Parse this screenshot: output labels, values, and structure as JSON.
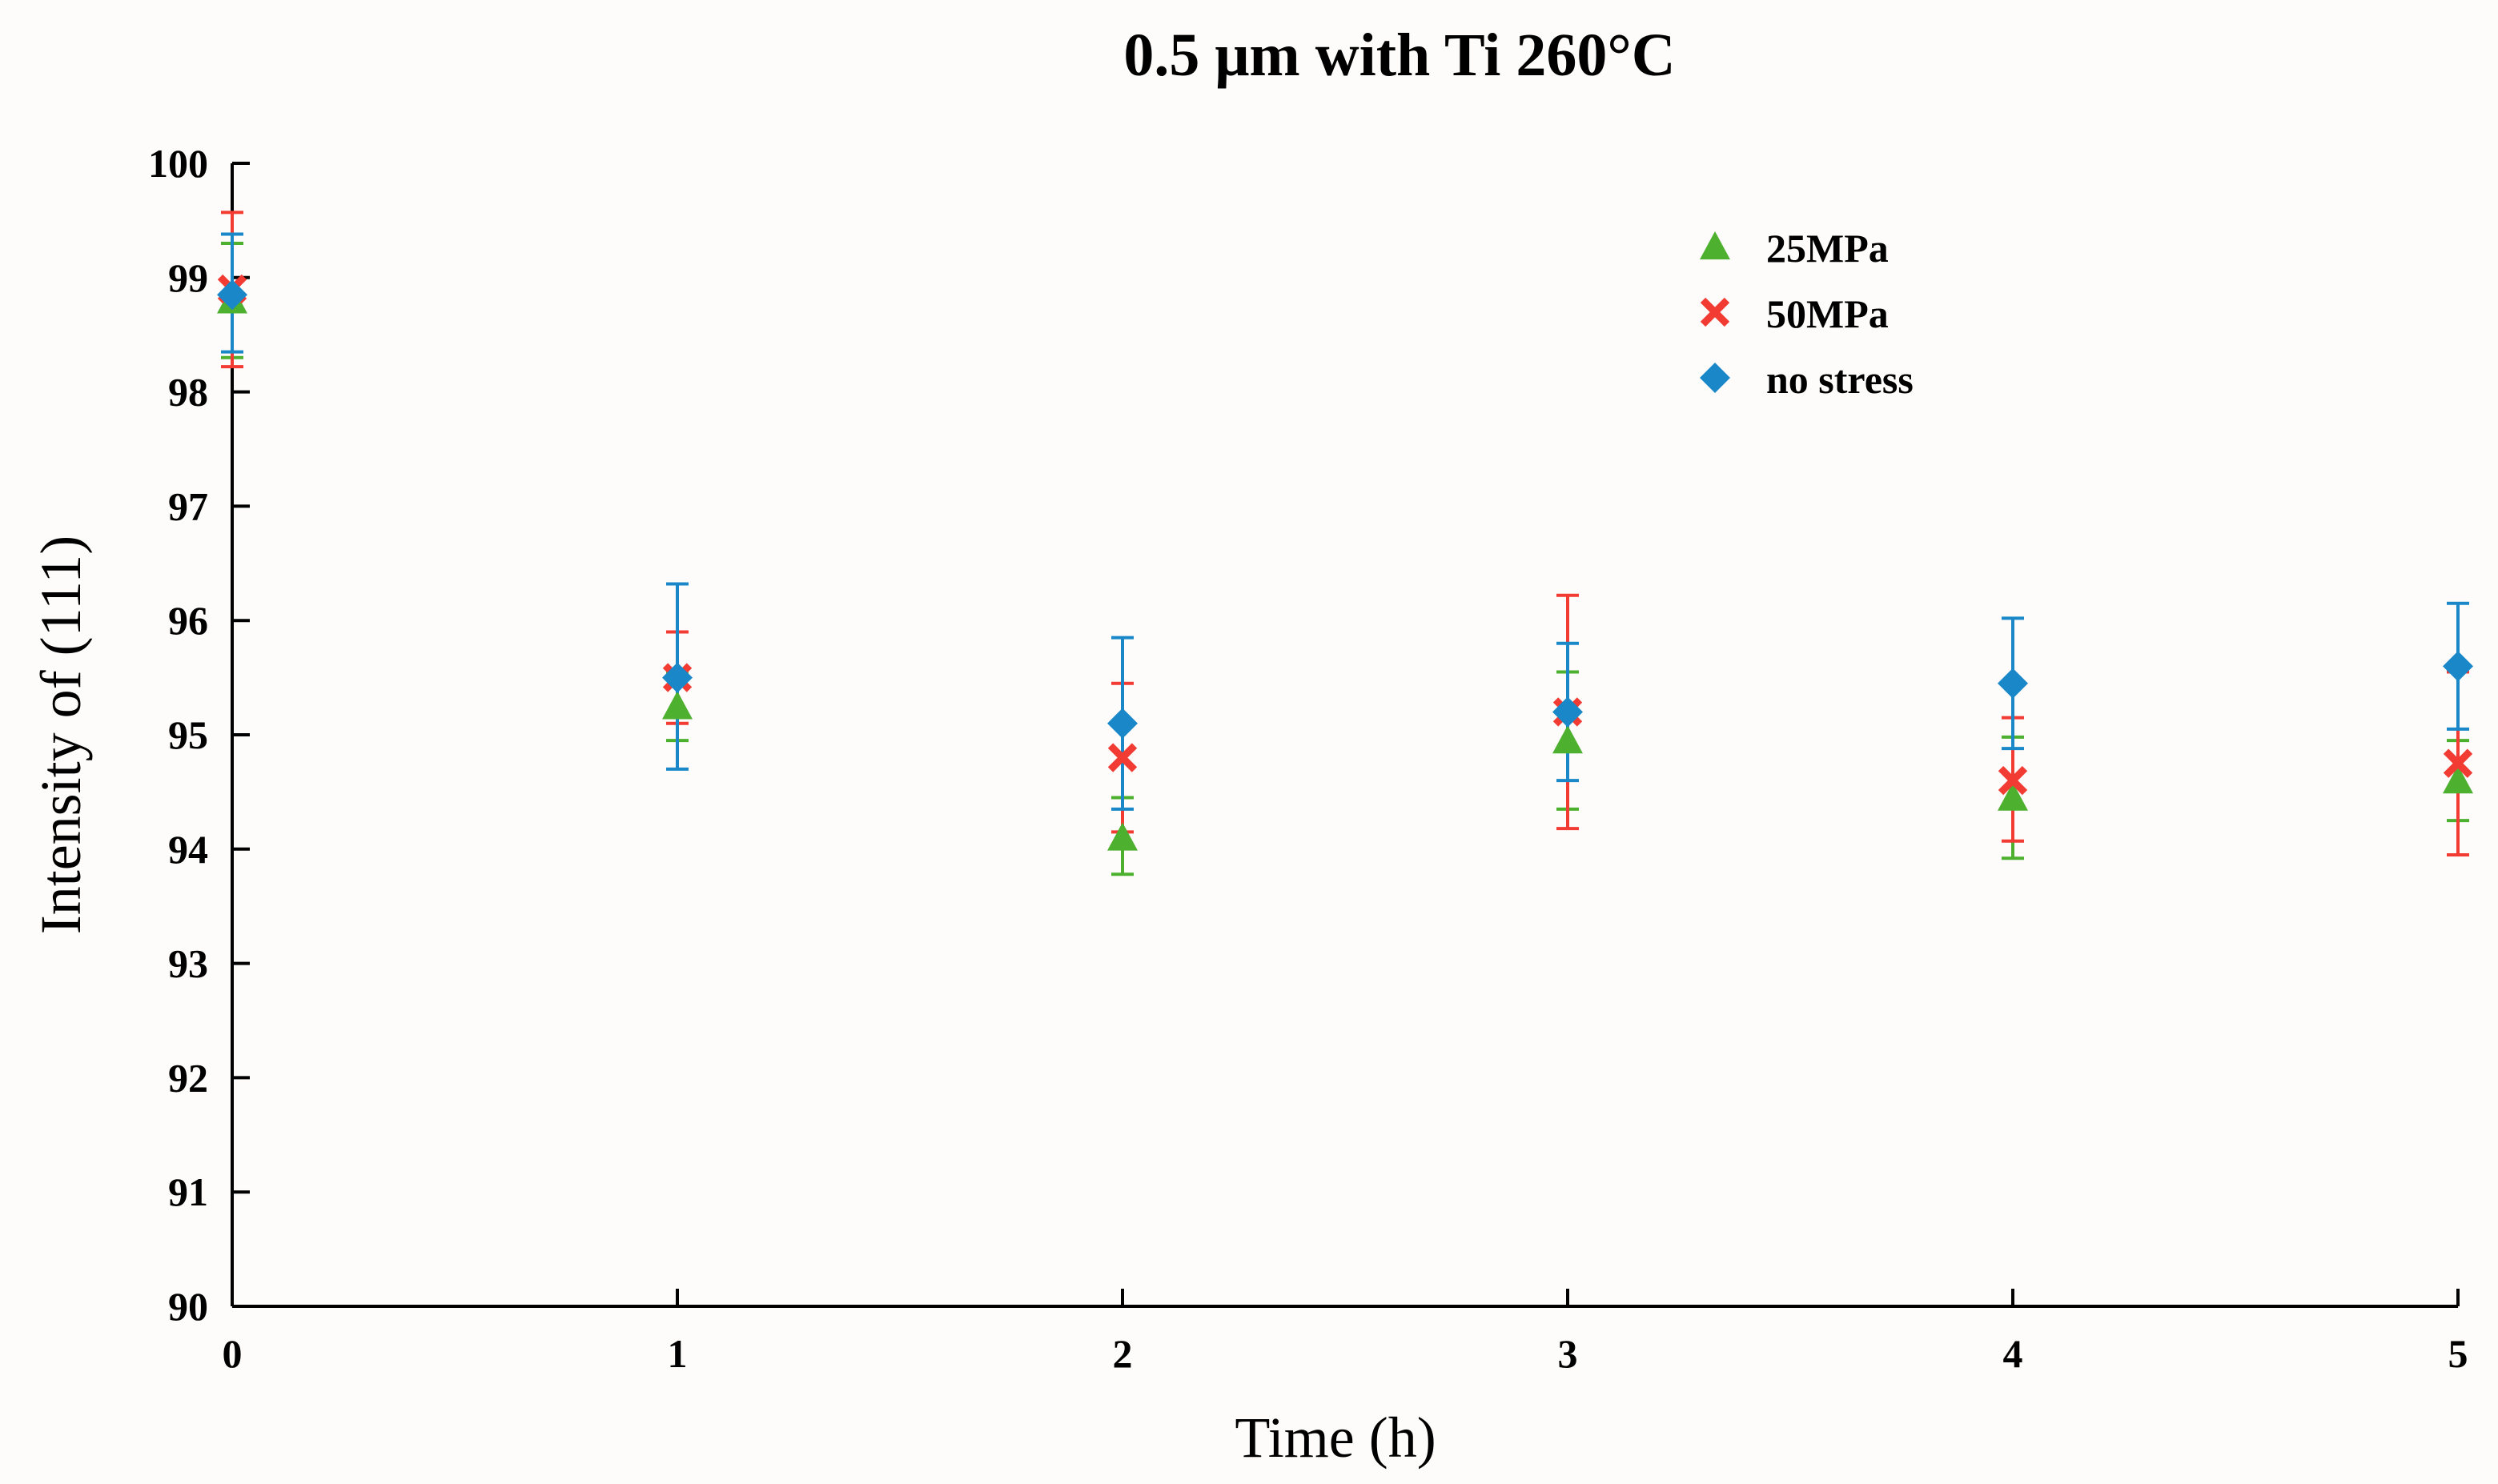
{
  "chart_data": {
    "type": "scatter",
    "title": "0.5 μm with Ti 260°C",
    "xlabel": "Time (h)",
    "ylabel": "Intensity of (111)",
    "xlim": [
      0,
      5
    ],
    "ylim": [
      90,
      100
    ],
    "x_ticks": [
      "0",
      "1",
      "2",
      "3",
      "4",
      "5"
    ],
    "y_ticks": [
      "90",
      "91",
      "92",
      "93",
      "94",
      "95",
      "96",
      "97",
      "98",
      "99",
      "100"
    ],
    "x": [
      0,
      1,
      2,
      3,
      4,
      5
    ],
    "legend_position": "top-right",
    "series": [
      {
        "name": "25MPa",
        "marker": "triangle",
        "color": "#4db02f",
        "values": [
          98.8,
          95.25,
          94.1,
          94.95,
          94.45,
          94.6
        ],
        "err_low": [
          98.3,
          94.95,
          93.78,
          94.35,
          93.92,
          94.25
        ],
        "err_high": [
          99.3,
          95.55,
          94.45,
          95.55,
          94.98,
          94.95
        ]
      },
      {
        "name": "50MPa",
        "marker": "x",
        "color": "#f23b33",
        "values": [
          98.9,
          95.5,
          94.8,
          95.2,
          94.6,
          94.75
        ],
        "err_low": [
          98.22,
          95.1,
          94.15,
          94.18,
          94.07,
          93.95
        ],
        "err_high": [
          99.57,
          95.9,
          95.45,
          96.22,
          95.15,
          95.55
        ]
      },
      {
        "name": "no stress",
        "marker": "diamond",
        "color": "#1a88c8",
        "values": [
          98.85,
          95.5,
          95.1,
          95.2,
          95.45,
          95.6
        ],
        "err_low": [
          98.35,
          94.7,
          94.35,
          94.6,
          94.88,
          95.05
        ],
        "err_high": [
          99.38,
          96.32,
          95.85,
          95.8,
          96.02,
          96.15
        ]
      }
    ]
  }
}
